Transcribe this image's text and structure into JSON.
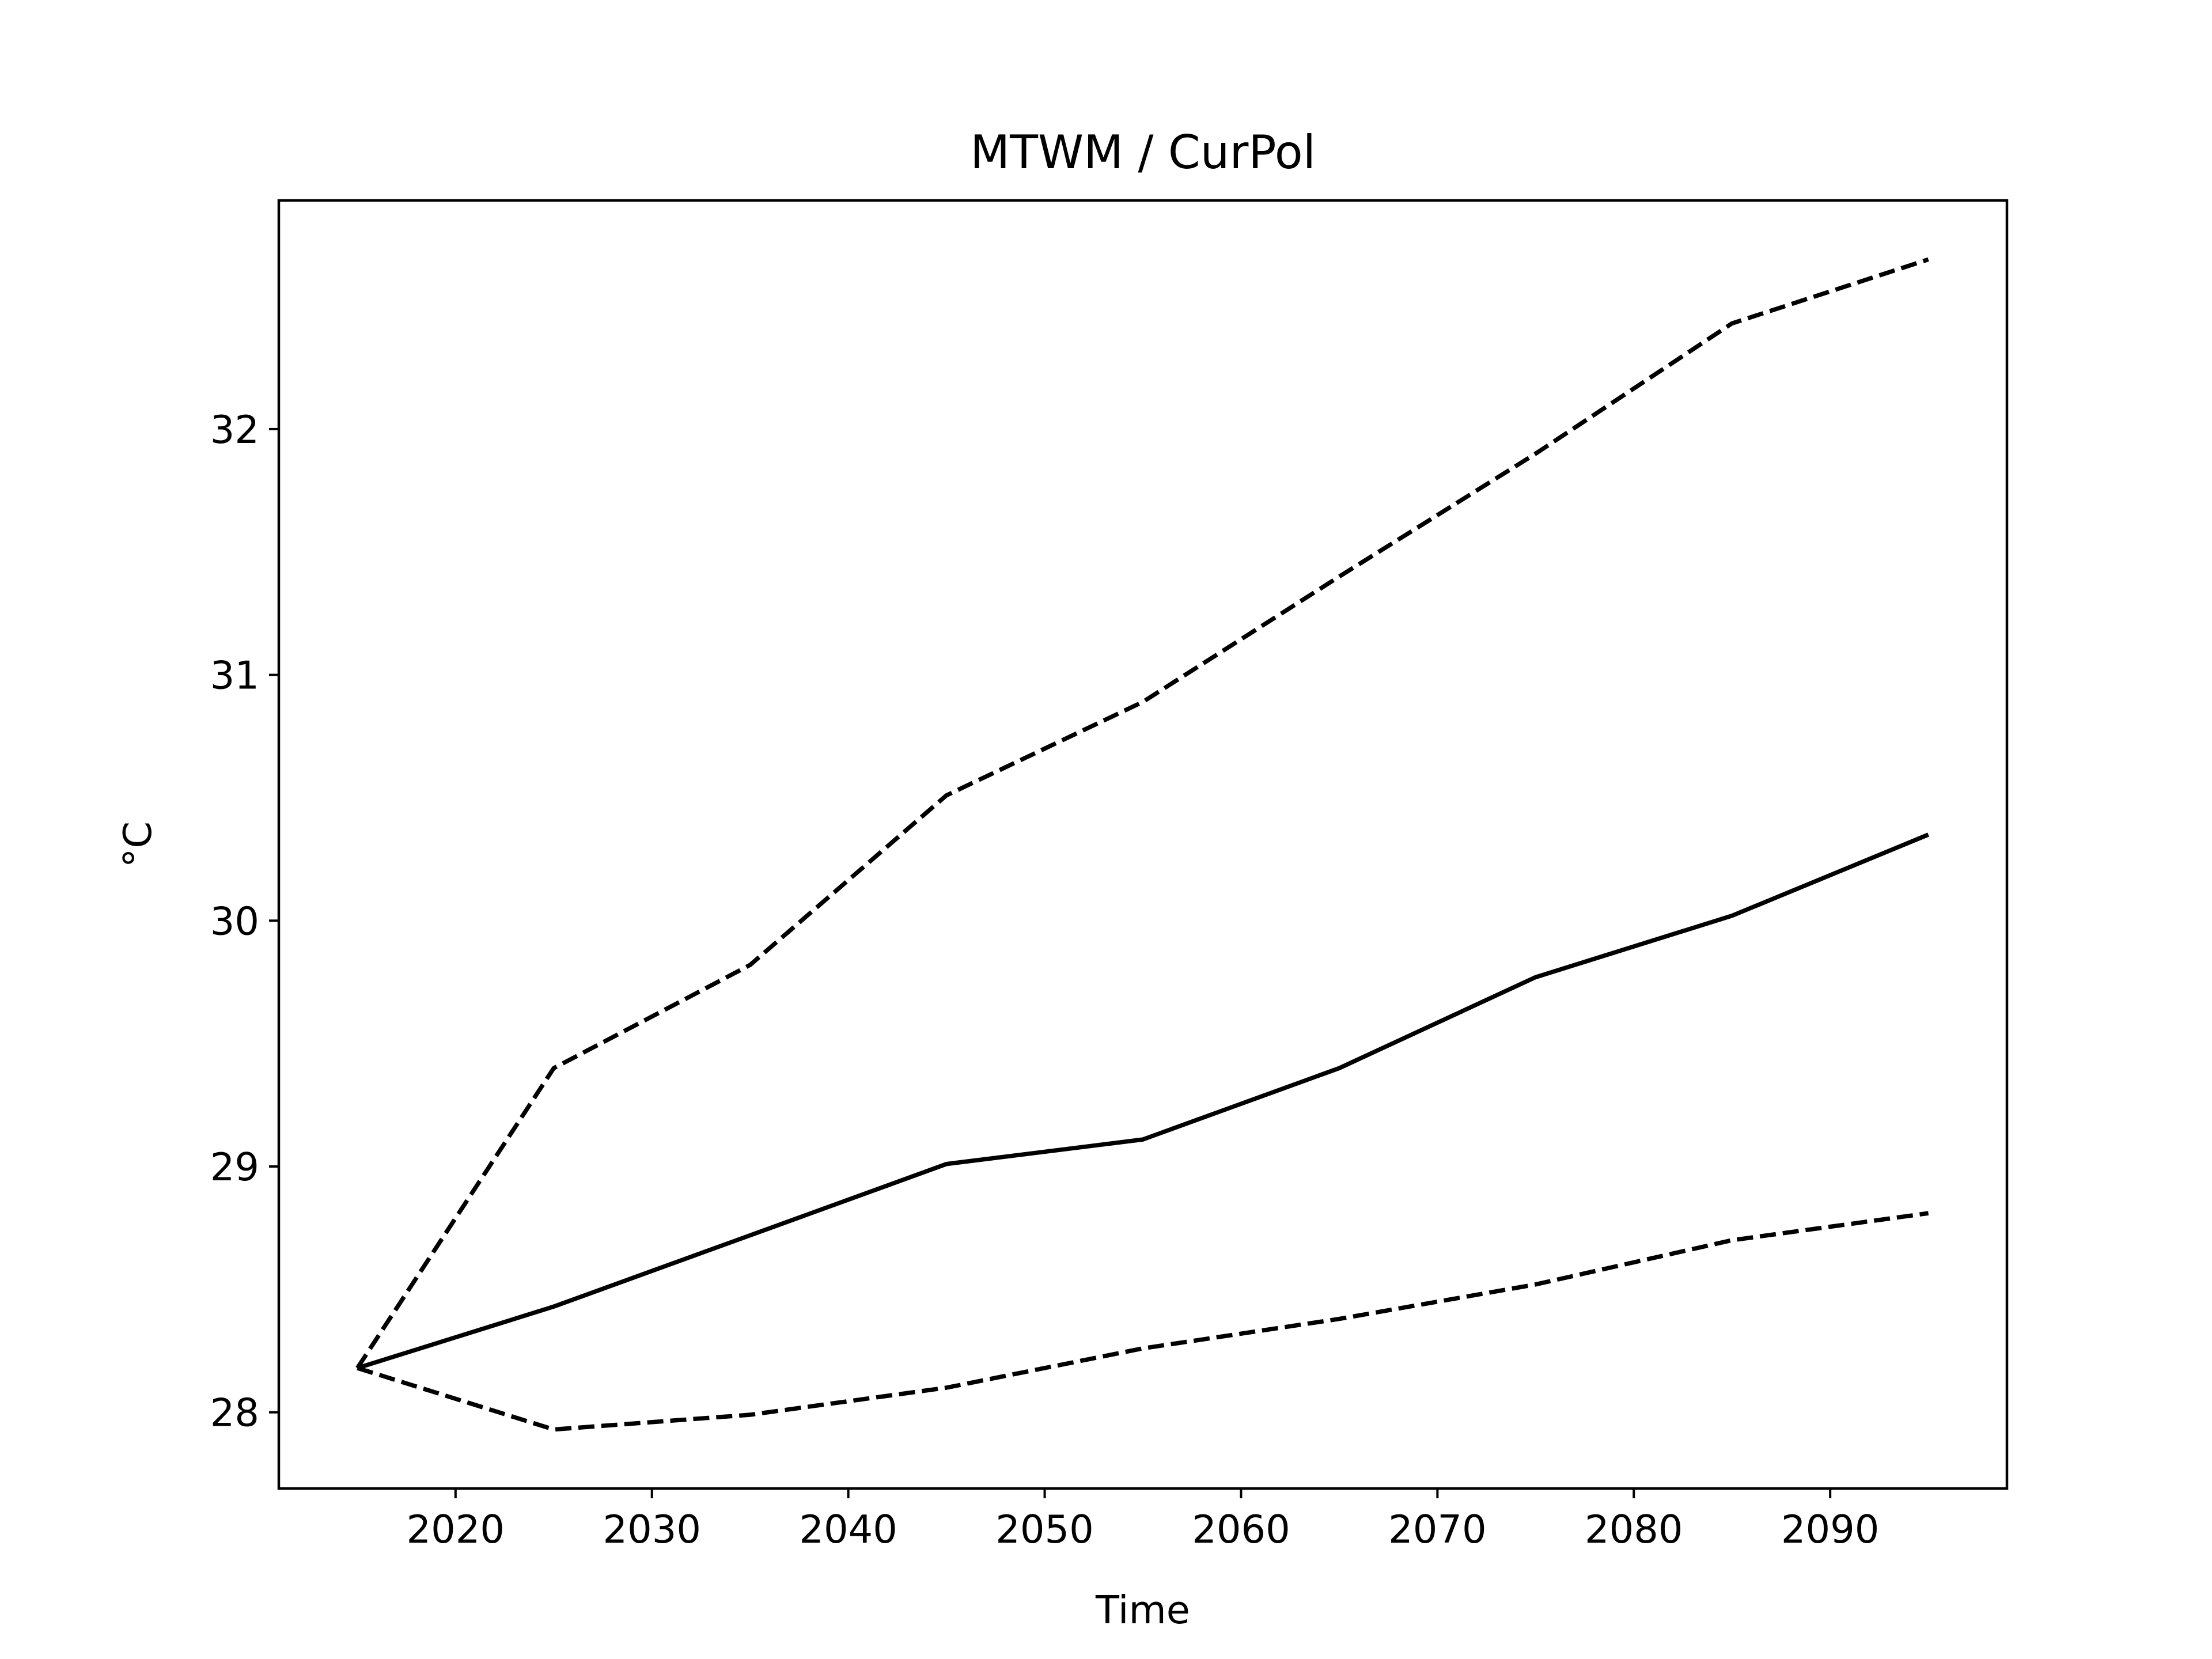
{
  "chart_data": {
    "type": "line",
    "title": "MTWM / CurPol",
    "xlabel": "Time",
    "ylabel": "°C",
    "x": [
      2015,
      2025,
      2035,
      2045,
      2055,
      2065,
      2075,
      2085,
      2095
    ],
    "series": [
      {
        "style": "dashed",
        "color": "#000000",
        "values": [
          28.18,
          29.4,
          29.82,
          30.51,
          30.89,
          31.4,
          31.9,
          32.43,
          32.69
        ]
      },
      {
        "style": "solid",
        "color": "#000000",
        "values": [
          28.18,
          28.43,
          28.72,
          29.01,
          29.11,
          29.4,
          29.77,
          30.02,
          30.35
        ]
      },
      {
        "style": "dashed",
        "color": "#000000",
        "values": [
          28.18,
          27.93,
          27.99,
          28.1,
          28.26,
          28.38,
          28.52,
          28.7,
          28.81
        ]
      }
    ],
    "xlim": [
      2011,
      2099
    ],
    "ylim": [
      27.69,
      32.93
    ],
    "xticks": [
      2020,
      2030,
      2040,
      2050,
      2060,
      2070,
      2080,
      2090
    ],
    "xtick_labels": [
      "2020",
      "2030",
      "2040",
      "2050",
      "2060",
      "2070",
      "2080",
      "2090"
    ],
    "yticks": [
      28,
      29,
      30,
      31,
      32
    ],
    "ytick_labels": [
      "28",
      "29",
      "30",
      "31",
      "32"
    ],
    "grid": false,
    "legend": "none"
  }
}
